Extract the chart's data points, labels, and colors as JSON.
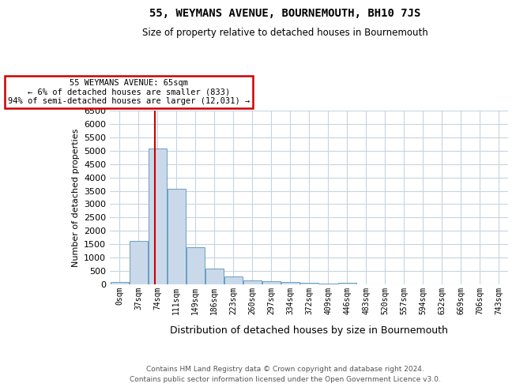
{
  "title": "55, WEYMANS AVENUE, BOURNEMOUTH, BH10 7JS",
  "subtitle": "Size of property relative to detached houses in Bournemouth",
  "xlabel": "Distribution of detached houses by size in Bournemouth",
  "ylabel": "Number of detached properties",
  "footer_line1": "Contains HM Land Registry data © Crown copyright and database right 2024.",
  "footer_line2": "Contains public sector information licensed under the Open Government Licence v3.0.",
  "bin_labels": [
    "0sqm",
    "37sqm",
    "74sqm",
    "111sqm",
    "149sqm",
    "186sqm",
    "223sqm",
    "260sqm",
    "297sqm",
    "334sqm",
    "372sqm",
    "409sqm",
    "446sqm",
    "483sqm",
    "520sqm",
    "557sqm",
    "594sqm",
    "632sqm",
    "669sqm",
    "706sqm",
    "743sqm"
  ],
  "bar_values": [
    80,
    1620,
    5080,
    3580,
    1400,
    590,
    300,
    150,
    130,
    100,
    55,
    35,
    60,
    0,
    0,
    0,
    0,
    0,
    0,
    0,
    0
  ],
  "bar_color": "#c9d9ea",
  "bar_edge_color": "#6a9ec0",
  "property_line_x": 1.85,
  "annotation_line1": "55 WEYMANS AVENUE: 65sqm",
  "annotation_line2": "← 6% of detached houses are smaller (833)",
  "annotation_line3": "94% of semi-detached houses are larger (12,031) →",
  "annotation_box_color": "#ffffff",
  "annotation_box_edge": "#cc0000",
  "property_line_color": "#cc0000",
  "ylim": [
    0,
    6500
  ],
  "yticks": [
    0,
    500,
    1000,
    1500,
    2000,
    2500,
    3000,
    3500,
    4000,
    4500,
    5000,
    5500,
    6000,
    6500
  ],
  "background_color": "#ffffff",
  "grid_color": "#c8d4e0"
}
